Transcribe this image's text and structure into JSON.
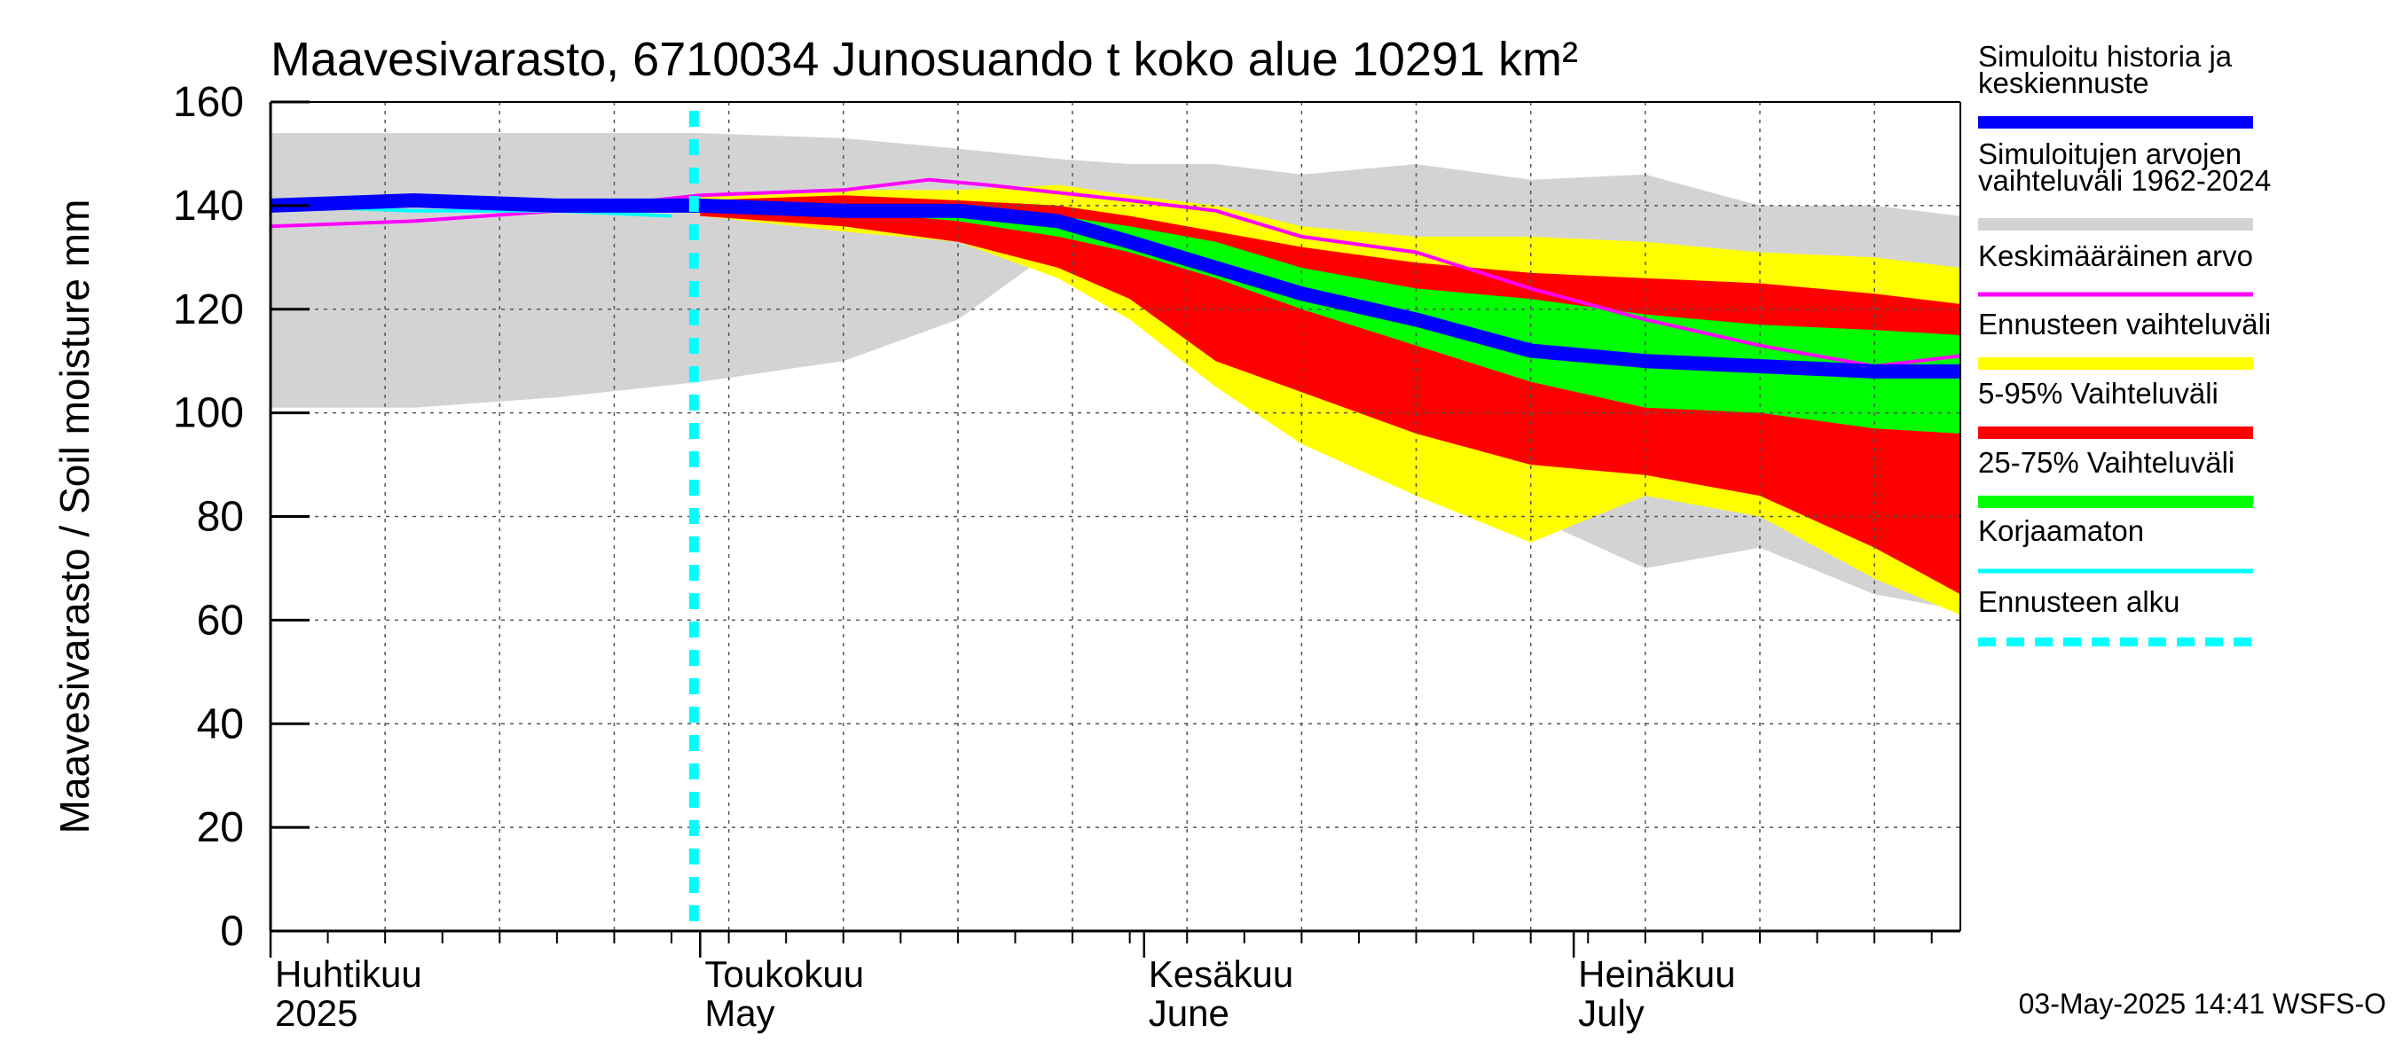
{
  "chart_data": {
    "type": "area",
    "title": "Maavesivarasto, 6710034 Junosuando t koko alue 10291 km²",
    "ylabel": "Maavesivarasto / Soil moisture   mm",
    "xlabel": "",
    "ylim": [
      0,
      160
    ],
    "y_ticks": [
      0,
      20,
      40,
      60,
      80,
      100,
      120,
      140,
      160
    ],
    "x_range_days": [
      0,
      118
    ],
    "forecast_start_day": 30,
    "grid": true,
    "months": [
      {
        "fi": "Huhtikuu",
        "en": "2025",
        "day": 0
      },
      {
        "fi": "Toukokuu",
        "en": "May",
        "day": 30
      },
      {
        "fi": "Kesäkuu",
        "en": "June",
        "day": 61
      },
      {
        "fi": "Heinäkuu",
        "en": "July",
        "day": 91
      }
    ],
    "series": [
      {
        "name": "Simuloitujen arvojen vaihteluväli 1962-2024",
        "kind": "band",
        "color": "#d3d3d3",
        "x": [
          0,
          10,
          20,
          30,
          40,
          48,
          55,
          60,
          66,
          72,
          80,
          88,
          96,
          104,
          112,
          118
        ],
        "upper": [
          154,
          154,
          154,
          154,
          153,
          151,
          149,
          148,
          148,
          146,
          148,
          145,
          146,
          140,
          140,
          138
        ],
        "lower": [
          101,
          101,
          103,
          106,
          110,
          118,
          132,
          126,
          107,
          96,
          90,
          80,
          70,
          74,
          65,
          62
        ]
      },
      {
        "name": "Ennusteen vaihteluväli",
        "kind": "band",
        "color": "#ffff00",
        "x": [
          30,
          40,
          48,
          55,
          60,
          66,
          72,
          80,
          88,
          96,
          104,
          112,
          118
        ],
        "upper": [
          142,
          143,
          143,
          144,
          142,
          140,
          136,
          134,
          134,
          133,
          131,
          130,
          128
        ],
        "lower": [
          138,
          135,
          133,
          126,
          118,
          105,
          94,
          84,
          75,
          84,
          80,
          68,
          61
        ]
      },
      {
        "name": "5-95% Vaihteluväli",
        "kind": "band",
        "color": "#ff0000",
        "x": [
          30,
          40,
          48,
          55,
          60,
          66,
          72,
          80,
          88,
          96,
          104,
          112,
          118
        ],
        "upper": [
          141,
          142,
          141,
          140,
          138,
          135,
          132,
          129,
          127,
          126,
          125,
          123,
          121
        ],
        "lower": [
          138,
          136,
          133,
          128,
          122,
          110,
          104,
          96,
          90,
          88,
          84,
          74,
          65
        ]
      },
      {
        "name": "25-75% Vaihteluväli",
        "kind": "band",
        "color": "#00ff00",
        "x": [
          30,
          40,
          48,
          55,
          60,
          66,
          72,
          80,
          88,
          96,
          104,
          112,
          118
        ],
        "upper": [
          140,
          140,
          139,
          138,
          136,
          133,
          128,
          124,
          122,
          119,
          117,
          116,
          115
        ],
        "lower": [
          139,
          139,
          137,
          134,
          131,
          126,
          120,
          113,
          106,
          101,
          100,
          97,
          96
        ]
      },
      {
        "name": "Keskimääräinen arvo",
        "kind": "line",
        "color": "#ff00ff",
        "x": [
          0,
          10,
          20,
          30,
          40,
          46,
          50,
          60,
          66,
          72,
          80,
          88,
          96,
          104,
          112,
          118
        ],
        "values": [
          136,
          137,
          139,
          142,
          143,
          145,
          144,
          141,
          139,
          134,
          131,
          124,
          118,
          113,
          109,
          111
        ]
      },
      {
        "name": "Korjaamaton",
        "kind": "line",
        "color": "#00ffff",
        "x": [
          0,
          10,
          20,
          28
        ],
        "values": [
          140,
          139,
          139,
          138
        ]
      },
      {
        "name": "Simuloitu historia ja keskiennuste",
        "kind": "line",
        "color": "#0000ff",
        "x": [
          0,
          10,
          20,
          30,
          40,
          48,
          55,
          60,
          66,
          72,
          80,
          88,
          96,
          104,
          112,
          118
        ],
        "values": [
          140,
          141,
          140,
          140,
          139,
          139,
          137,
          133,
          128,
          123,
          118,
          112,
          110,
          109,
          108,
          108
        ]
      }
    ]
  },
  "legend": [
    {
      "label": "Simuloitu historia ja keskiennuste",
      "color": "#0000ff",
      "style": "thick"
    },
    {
      "label": "Simuloitujen arvojen vaihteluväli 1962-2024",
      "color": "#d3d3d3",
      "style": "thick"
    },
    {
      "label": "Keskimääräinen arvo",
      "color": "#ff00ff",
      "style": "thin"
    },
    {
      "label": "Ennusteen vaihteluväli",
      "color": "#ffff00",
      "style": "thick"
    },
    {
      "label": "5-95% Vaihteluväli",
      "color": "#ff0000",
      "style": "thick"
    },
    {
      "label": "25-75% Vaihteluväli",
      "color": "#00ff00",
      "style": "thick"
    },
    {
      "label": "Korjaamaton",
      "color": "#00ffff",
      "style": "thin"
    },
    {
      "label": "Ennusteen alku",
      "color": "#00ffff",
      "style": "dashed"
    }
  ],
  "timestamp": "03-May-2025 14:41 WSFS-O"
}
